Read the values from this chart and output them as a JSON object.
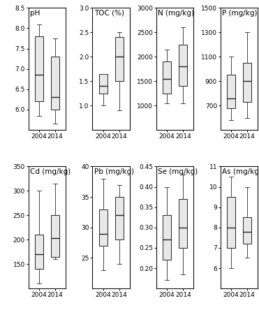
{
  "subplots": [
    {
      "title": "pH",
      "ylim": [
        5.5,
        8.5
      ],
      "yticks": [
        6.0,
        6.5,
        7.0,
        7.5,
        8.0,
        8.5
      ],
      "ytick_labels": [
        "6.0",
        "6.5",
        "7.0",
        "7.5",
        "8.0",
        "8.5"
      ],
      "data_2004": {
        "whislo": 5.85,
        "q1": 6.2,
        "med": 6.85,
        "q3": 7.8,
        "whishi": 8.1
      },
      "data_2014": {
        "whislo": 5.65,
        "q1": 6.0,
        "med": 6.3,
        "q3": 7.3,
        "whishi": 7.75
      }
    },
    {
      "title": "TOC (%)",
      "ylim": [
        0.5,
        3.0
      ],
      "yticks": [
        1.0,
        1.5,
        2.0,
        2.5,
        3.0
      ],
      "ytick_labels": [
        "1.0",
        "1.5",
        "2.0",
        "2.5",
        "3.0"
      ],
      "data_2004": {
        "whislo": 1.0,
        "q1": 1.25,
        "med": 1.4,
        "q3": 1.65,
        "whishi": 1.65
      },
      "data_2014": {
        "whislo": 0.9,
        "q1": 1.5,
        "med": 2.0,
        "q3": 2.4,
        "whishi": 2.5
      }
    },
    {
      "title": "N (mg/kg)",
      "ylim": [
        500,
        3000
      ],
      "yticks": [
        1000,
        1500,
        2000,
        2500,
        3000
      ],
      "ytick_labels": [
        "1000",
        "1500",
        "2000",
        "2500",
        "3000"
      ],
      "data_2004": {
        "whislo": 1050,
        "q1": 1250,
        "med": 1550,
        "q3": 1900,
        "whishi": 2150
      },
      "data_2014": {
        "whislo": 1050,
        "q1": 1400,
        "med": 1800,
        "q3": 2250,
        "whishi": 2600
      }
    },
    {
      "title": "P (mg/kg)",
      "ylim": [
        500,
        1500
      ],
      "yticks": [
        700,
        900,
        1100,
        1300,
        1500
      ],
      "ytick_labels": [
        "700",
        "900",
        "1100",
        "1300",
        "1500"
      ],
      "data_2004": {
        "whislo": 580,
        "q1": 680,
        "med": 760,
        "q3": 950,
        "whishi": 1100
      },
      "data_2014": {
        "whislo": 600,
        "q1": 730,
        "med": 900,
        "q3": 1050,
        "whishi": 1300
      }
    },
    {
      "title": "Cd (mg/kg)",
      "ylim": [
        100,
        350
      ],
      "yticks": [
        150,
        200,
        250,
        300,
        350
      ],
      "ytick_labels": [
        "150",
        "200",
        "250",
        "300",
        "350"
      ],
      "data_2004": {
        "whislo": 110,
        "q1": 140,
        "med": 170,
        "q3": 210,
        "whishi": 300
      },
      "data_2014": {
        "whislo": 160,
        "q1": 165,
        "med": 203,
        "q3": 250,
        "whishi": 315
      }
    },
    {
      "title": "Pb (mg/kg)",
      "ylim": [
        20,
        40
      ],
      "yticks": [
        25,
        30,
        35,
        40
      ],
      "ytick_labels": [
        "25",
        "30",
        "35",
        "40"
      ],
      "data_2004": {
        "whislo": 23,
        "q1": 27,
        "med": 29,
        "q3": 33,
        "whishi": 38
      },
      "data_2014": {
        "whislo": 24,
        "q1": 28,
        "med": 32,
        "q3": 35,
        "whishi": 37
      }
    },
    {
      "title": "Se (mg/kg)",
      "ylim": [
        0.15,
        0.45
      ],
      "yticks": [
        0.2,
        0.25,
        0.3,
        0.35,
        0.4,
        0.45
      ],
      "ytick_labels": [
        "0.20",
        "0.25",
        "0.30",
        "0.35",
        "0.40",
        "0.45"
      ],
      "data_2004": {
        "whislo": 0.17,
        "q1": 0.22,
        "med": 0.27,
        "q3": 0.33,
        "whishi": 0.4
      },
      "data_2014": {
        "whislo": 0.185,
        "q1": 0.25,
        "med": 0.3,
        "q3": 0.37,
        "whishi": 0.43
      }
    },
    {
      "title": "As (mg/kg)",
      "ylim": [
        5,
        11
      ],
      "yticks": [
        6,
        7,
        8,
        9,
        10,
        11
      ],
      "ytick_labels": [
        "6",
        "7",
        "8",
        "9",
        "10",
        "11"
      ],
      "data_2004": {
        "whislo": 6.0,
        "q1": 7.0,
        "med": 8.0,
        "q3": 9.5,
        "whishi": 10.5
      },
      "data_2014": {
        "whislo": 6.5,
        "q1": 7.2,
        "med": 7.8,
        "q3": 8.5,
        "whishi": 10.0
      }
    }
  ],
  "box_facecolor": "#e8e8e8",
  "box_edgecolor": "#222222",
  "median_color": "#222222",
  "whisker_color": "#444444",
  "cap_color": "#444444",
  "xticklabels": [
    "2004",
    "2014"
  ],
  "title_fontsize": 7.5,
  "tick_fontsize": 6.5,
  "fig_width": 3.71,
  "fig_height": 4.54,
  "dpi": 100
}
